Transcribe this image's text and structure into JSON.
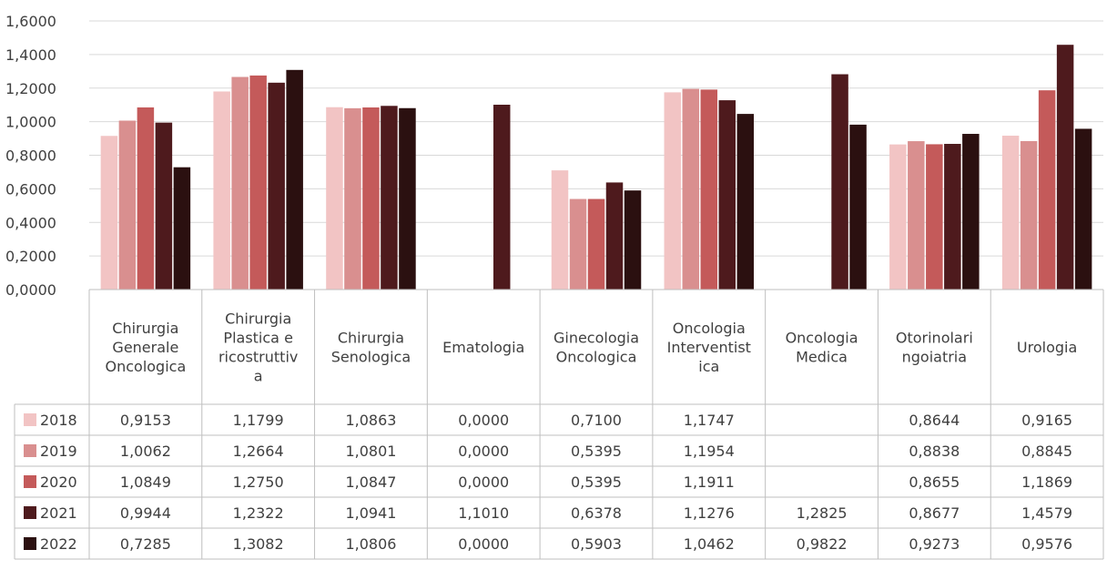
{
  "chart_data": {
    "type": "bar",
    "ylim": [
      0,
      1.6
    ],
    "y_ticks": [
      "0,0000",
      "0,2000",
      "0,4000",
      "0,6000",
      "0,8000",
      "1,0000",
      "1,2000",
      "1,4000",
      "1,6000"
    ],
    "y_tick_values": [
      0,
      0.2,
      0.4,
      0.6,
      0.8,
      1.0,
      1.2,
      1.4,
      1.6
    ],
    "grid": true,
    "legend": "data-table-left",
    "categories": [
      "Chirurgia Generale Oncologica",
      "Chirurgia Plastica e ricostruttiva",
      "Chirurgia Senologica",
      "Ematologia",
      "Ginecologia Oncologica",
      "Oncologia Interventistica",
      "Oncologia Medica",
      "Otorinolaringoiatria",
      "Urologia"
    ],
    "category_label_lines": [
      [
        "Chirurgia",
        "Generale",
        "Oncologica"
      ],
      [
        "Chirurgia",
        "Plastica e",
        "ricostruttiv",
        "a"
      ],
      [
        "Chirurgia",
        "Senologica"
      ],
      [
        "Ematologia"
      ],
      [
        "Ginecologia",
        "Oncologica"
      ],
      [
        "Oncologia",
        "Interventist",
        "ica"
      ],
      [
        "Oncologia",
        "Medica"
      ],
      [
        "Otorinolari",
        "ngoiatria"
      ],
      [
        "Urologia"
      ]
    ],
    "series": [
      {
        "name": "2018",
        "color": "#f2c4c4",
        "values": [
          0.9153,
          1.1799,
          1.0863,
          0.0,
          0.71,
          1.1747,
          null,
          0.8644,
          0.9165
        ],
        "labels": [
          "0,9153",
          "1,1799",
          "1,0863",
          "0,0000",
          "0,7100",
          "1,1747",
          "",
          "0,8644",
          "0,9165"
        ]
      },
      {
        "name": "2019",
        "color": "#d98f8f",
        "values": [
          1.0062,
          1.2664,
          1.0801,
          0.0,
          0.5395,
          1.1954,
          null,
          0.8838,
          0.8845
        ],
        "labels": [
          "1,0062",
          "1,2664",
          "1,0801",
          "0,0000",
          "0,5395",
          "1,1954",
          "",
          "0,8838",
          "0,8845"
        ]
      },
      {
        "name": "2020",
        "color": "#c45a5a",
        "values": [
          1.0849,
          1.275,
          1.0847,
          0.0,
          0.5395,
          1.1911,
          null,
          0.8655,
          1.1869
        ],
        "labels": [
          "1,0849",
          "1,2750",
          "1,0847",
          "0,0000",
          "0,5395",
          "1,1911",
          "",
          "0,8655",
          "1,1869"
        ]
      },
      {
        "name": "2021",
        "color": "#4e1a1d",
        "values": [
          0.9944,
          1.2322,
          1.0941,
          1.101,
          0.6378,
          1.1276,
          1.2825,
          0.8677,
          1.4579
        ],
        "labels": [
          "0,9944",
          "1,2322",
          "1,0941",
          "1,1010",
          "0,6378",
          "1,1276",
          "1,2825",
          "0,8677",
          "1,4579"
        ]
      },
      {
        "name": "2022",
        "color": "#2b1010",
        "values": [
          0.7285,
          1.3082,
          1.0806,
          0.0,
          0.5903,
          1.0462,
          0.9822,
          0.9273,
          0.9576
        ],
        "labels": [
          "0,7285",
          "1,3082",
          "1,0806",
          "0,0000",
          "0,5903",
          "1,0462",
          "0,9822",
          "0,9273",
          "0,9576"
        ]
      }
    ]
  }
}
